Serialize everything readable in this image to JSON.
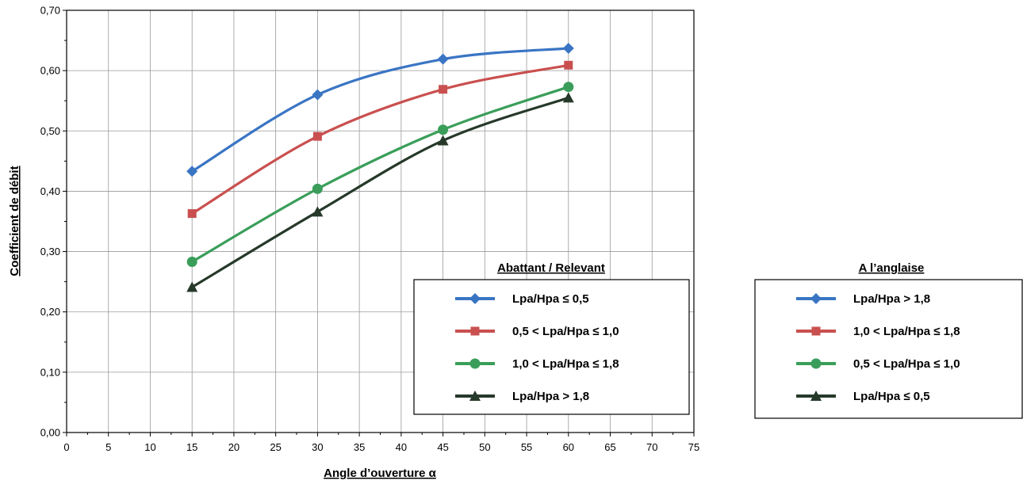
{
  "chart_data": {
    "type": "line",
    "xlabel": "Angle d’ouverture α",
    "ylabel": "Coefficient de débit",
    "xlim": [
      0,
      75
    ],
    "ylim": [
      0,
      0.7
    ],
    "x_ticks": [
      "0",
      "5",
      "10",
      "15",
      "20",
      "25",
      "30",
      "35",
      "40",
      "45",
      "50",
      "55",
      "60",
      "65",
      "70",
      "75"
    ],
    "y_ticks": [
      "0,00",
      "0,10",
      "0,20",
      "0,30",
      "0,40",
      "0,50",
      "0,60",
      "0,70"
    ],
    "grid": true,
    "x": [
      15,
      30,
      45,
      60
    ],
    "series": [
      {
        "name": "Lpa/Hpa ≤ 0,5",
        "color": "#3a75c4",
        "marker": "diamond",
        "values": [
          0.433,
          0.56,
          0.619,
          0.637
        ]
      },
      {
        "name": "0,5 < Lpa/Hpa ≤ 1,0",
        "color": "#c9504f",
        "marker": "square",
        "values": [
          0.363,
          0.491,
          0.569,
          0.609
        ]
      },
      {
        "name": "1,0 < Lpa/Hpa ≤ 1,8",
        "color": "#3a9e5a",
        "marker": "circle",
        "values": [
          0.283,
          0.404,
          0.502,
          0.573
        ]
      },
      {
        "name": "Lpa/Hpa > 1,8",
        "color": "#26392a",
        "marker": "triangle",
        "values": [
          0.241,
          0.366,
          0.484,
          0.555
        ]
      }
    ],
    "legends": [
      {
        "title": "Abattant / Relevant",
        "placement": "lower-right inside plot",
        "entries": [
          {
            "label": "Lpa/Hpa ≤ 0,5",
            "color": "#3a75c4",
            "marker": "diamond"
          },
          {
            "label": "0,5 < Lpa/Hpa ≤ 1,0",
            "color": "#c9504f",
            "marker": "square"
          },
          {
            "label": "1,0 < Lpa/Hpa ≤ 1,8",
            "color": "#3a9e5a",
            "marker": "circle"
          },
          {
            "label": "Lpa/Hpa > 1,8",
            "color": "#26392a",
            "marker": "triangle"
          }
        ]
      },
      {
        "title": "A l’anglaise",
        "placement": "right outside plot",
        "entries": [
          {
            "label": "Lpa/Hpa > 1,8",
            "color": "#3a75c4",
            "marker": "diamond"
          },
          {
            "label": "1,0 < Lpa/Hpa ≤ 1,8",
            "color": "#c9504f",
            "marker": "square"
          },
          {
            "label": "0,5 < Lpa/Hpa ≤ 1,0",
            "color": "#3a9e5a",
            "marker": "circle"
          },
          {
            "label": "Lpa/Hpa ≤ 0,5",
            "color": "#26392a",
            "marker": "triangle"
          }
        ]
      }
    ]
  }
}
